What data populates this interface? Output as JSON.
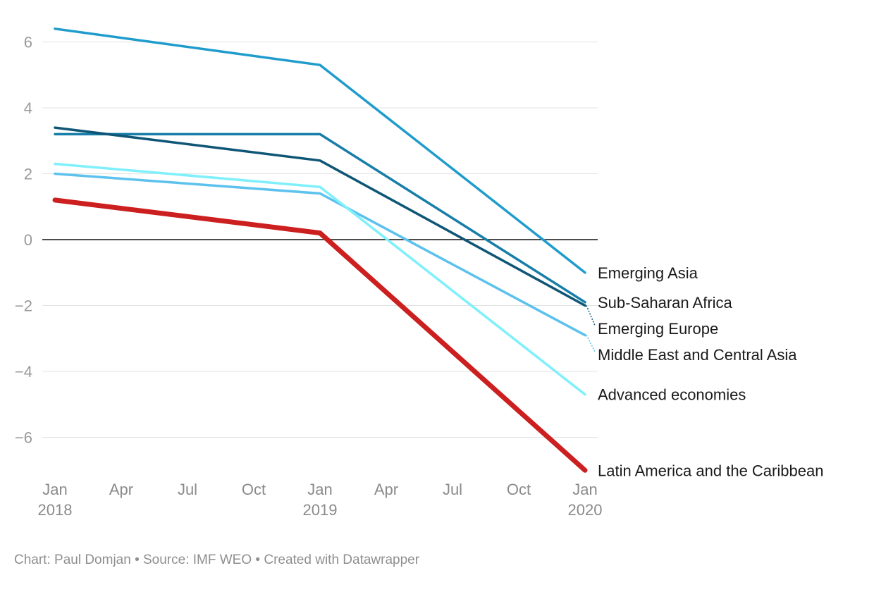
{
  "chart_data": {
    "type": "line",
    "x": [
      "2018-01",
      "2019-01",
      "2020-01"
    ],
    "x_ticks": [
      {
        "date": "2018-01",
        "label": "Jan",
        "year": "2018"
      },
      {
        "date": "2018-04",
        "label": "Apr",
        "year": ""
      },
      {
        "date": "2018-07",
        "label": "Jul",
        "year": ""
      },
      {
        "date": "2018-10",
        "label": "Oct",
        "year": ""
      },
      {
        "date": "2019-01",
        "label": "Jan",
        "year": "2019"
      },
      {
        "date": "2019-04",
        "label": "Apr",
        "year": ""
      },
      {
        "date": "2019-07",
        "label": "Jul",
        "year": ""
      },
      {
        "date": "2019-10",
        "label": "Oct",
        "year": ""
      },
      {
        "date": "2020-01",
        "label": "Jan",
        "year": "2020"
      }
    ],
    "y_ticks": [
      {
        "value": 6,
        "label": "6"
      },
      {
        "value": 4,
        "label": "4"
      },
      {
        "value": 2,
        "label": "2"
      },
      {
        "value": 0,
        "label": "0"
      },
      {
        "value": -2,
        "label": "−2"
      },
      {
        "value": -4,
        "label": "−4"
      },
      {
        "value": -6,
        "label": "−6"
      }
    ],
    "ylim": [
      -7,
      6.4
    ],
    "grid": true,
    "zero_line": true,
    "series": [
      {
        "name": "Emerging Asia",
        "values": [
          6.4,
          5.3,
          -1.0
        ],
        "color": "#1f9ccc",
        "emphasis": false
      },
      {
        "name": "Sub-Saharan Africa",
        "values": [
          3.2,
          3.2,
          -1.9
        ],
        "color": "#167ea8",
        "emphasis": false
      },
      {
        "name": "Emerging Europe",
        "values": [
          3.4,
          2.4,
          -2.0
        ],
        "color": "#0f5676",
        "emphasis": false
      },
      {
        "name": "Middle East and Central Asia",
        "values": [
          2.0,
          1.4,
          -2.9
        ],
        "color": "#5cc2ed",
        "emphasis": false
      },
      {
        "name": "Advanced economies",
        "values": [
          2.3,
          1.6,
          -4.7
        ],
        "color": "#7ff0fb",
        "emphasis": false
      },
      {
        "name": "Latin America and the Caribbean",
        "values": [
          1.2,
          0.2,
          -7.0
        ],
        "color": "#cc1f1f",
        "emphasis": true
      }
    ]
  },
  "footer": "Chart: Paul Domjan • Source: IMF WEO • Created with Datawrapper"
}
